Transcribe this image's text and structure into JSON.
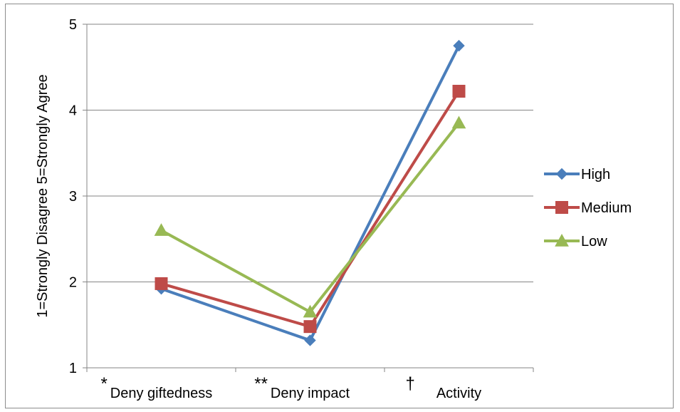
{
  "chart_data": {
    "type": "line",
    "title": "",
    "xlabel": "",
    "ylabel": "1=Strongly Disagree 5=Strongly Agree",
    "ylim": [
      1,
      5
    ],
    "yticks": [
      1,
      2,
      3,
      4,
      5
    ],
    "grid": true,
    "legend_position": "right",
    "categories": [
      {
        "marker": "*",
        "label": "Deny giftedness"
      },
      {
        "marker": "**",
        "label": "Deny impact"
      },
      {
        "marker": "†",
        "label": "Activity"
      }
    ],
    "series": [
      {
        "name": "High",
        "values": [
          1.92,
          1.32,
          4.75
        ],
        "color": "#4a7ebb",
        "marker_shape": "diamond"
      },
      {
        "name": "Medium",
        "values": [
          1.98,
          1.48,
          4.22
        ],
        "color": "#be4b48",
        "marker_shape": "square"
      },
      {
        "name": "Low",
        "values": [
          2.6,
          1.65,
          3.85
        ],
        "color": "#98b954",
        "marker_shape": "triangle"
      }
    ]
  }
}
